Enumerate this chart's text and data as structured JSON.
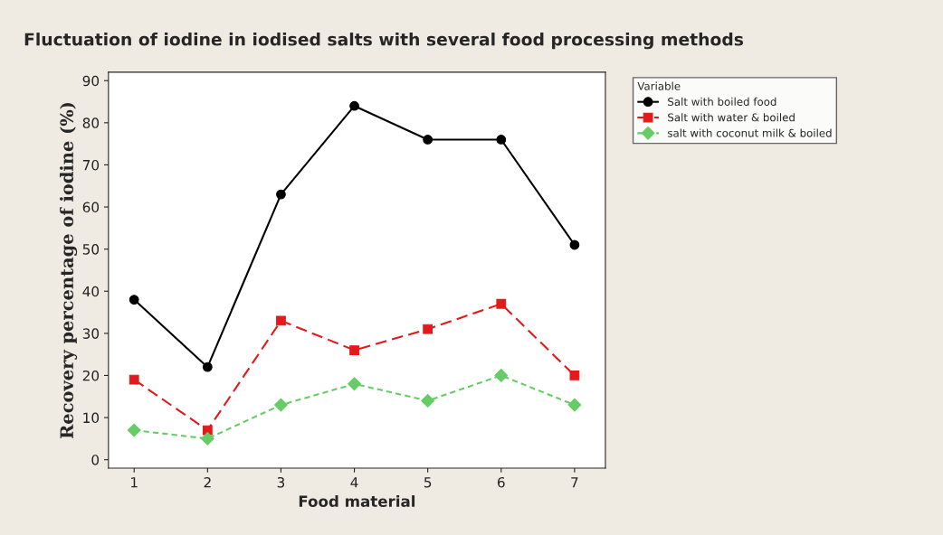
{
  "chart_data": {
    "type": "line",
    "title": "Fluctuation of iodine in iodised salts with several food processing methods",
    "xlabel": "Food material",
    "ylabel": "Recovery percentage of iodine (%)",
    "legend_title": "Variable",
    "x": [
      1,
      2,
      3,
      4,
      5,
      6,
      7
    ],
    "xlim": [
      0.65,
      7.42
    ],
    "xticks": [
      1,
      2,
      3,
      4,
      5,
      6,
      7
    ],
    "ylim": [
      -2,
      92
    ],
    "yticks": [
      0,
      10,
      20,
      30,
      40,
      50,
      60,
      70,
      80,
      90
    ],
    "grid": false,
    "legend": "top right",
    "series": [
      {
        "name": "Salt with boiled food",
        "color": "#000000",
        "values": [
          38,
          22,
          63,
          84,
          76,
          76,
          51
        ],
        "marker": "circle",
        "line_style": "solid"
      },
      {
        "name": "Salt with water & boiled",
        "color": "#e31a1c",
        "values": [
          19,
          7,
          33,
          26,
          31,
          37,
          20
        ],
        "marker": "square",
        "line_style": "dashed"
      },
      {
        "name": "salt with coconut milk & boiled",
        "color": "#66cc66",
        "values": [
          7,
          5,
          13,
          18,
          14,
          20,
          13
        ],
        "marker": "diamond",
        "line_style": "dotted"
      }
    ]
  }
}
